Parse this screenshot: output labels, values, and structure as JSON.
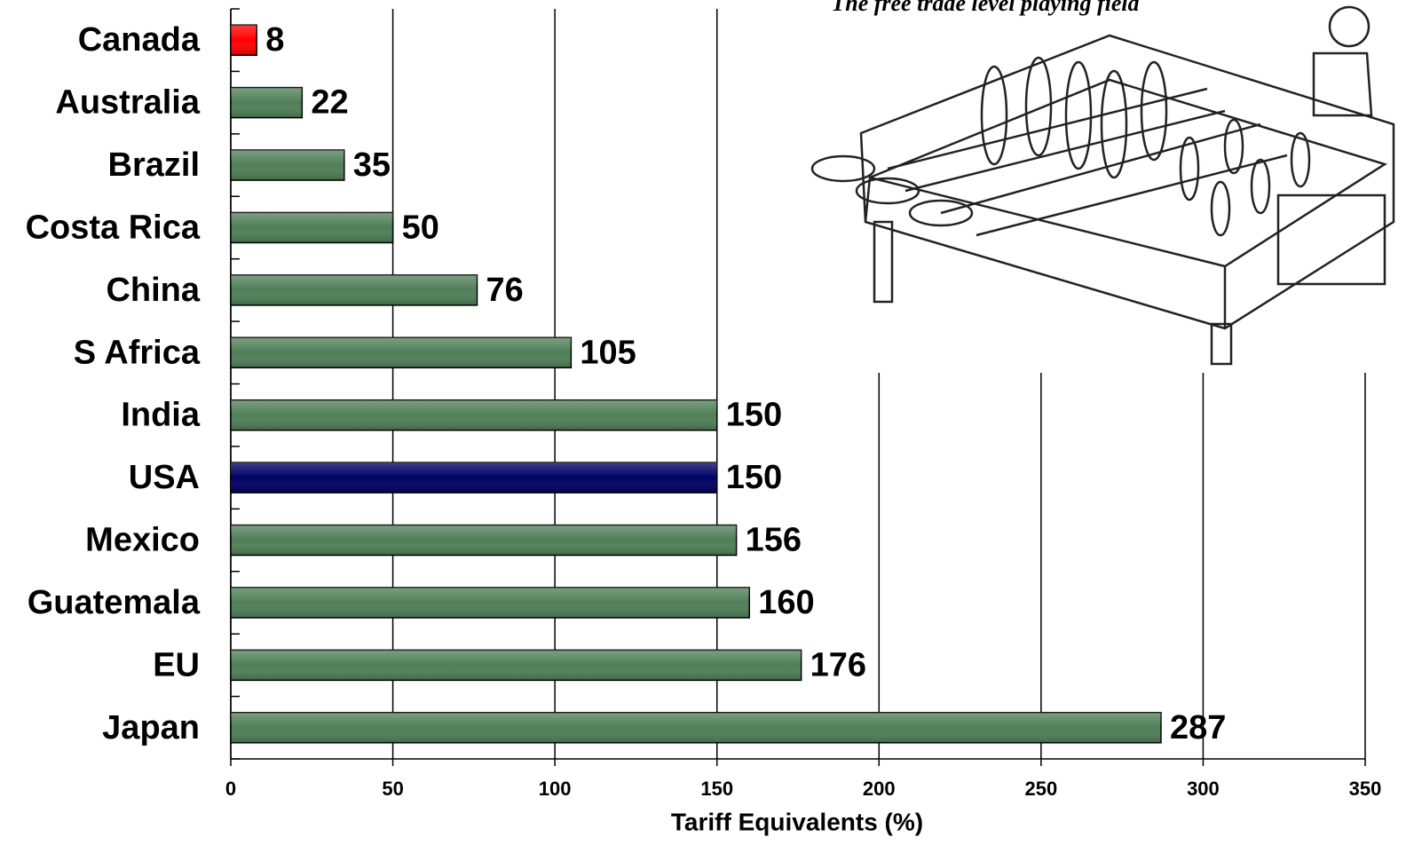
{
  "chart_data": {
    "type": "bar",
    "orientation": "horizontal",
    "annotation": "The free trade level playing field",
    "categories": [
      "Canada",
      "Australia",
      "Brazil",
      "Costa Rica",
      "China",
      "S Africa",
      "India",
      "USA",
      "Mexico",
      "Guatemala",
      "EU",
      "Japan"
    ],
    "values": [
      8,
      22,
      35,
      50,
      76,
      105,
      150,
      150,
      156,
      160,
      176,
      287
    ],
    "colors": [
      "#ff0000",
      "#4f7f57",
      "#4f7f57",
      "#4f7f57",
      "#4f7f57",
      "#4f7f57",
      "#4f7f57",
      "#000066",
      "#4f7f57",
      "#4f7f57",
      "#4f7f57",
      "#4f7f57"
    ],
    "xlabel": "Tariff Equivalents (%)",
    "xlim": [
      0,
      350
    ],
    "xticks": [
      0,
      50,
      100,
      150,
      200,
      250,
      300,
      350
    ],
    "grid": true
  }
}
